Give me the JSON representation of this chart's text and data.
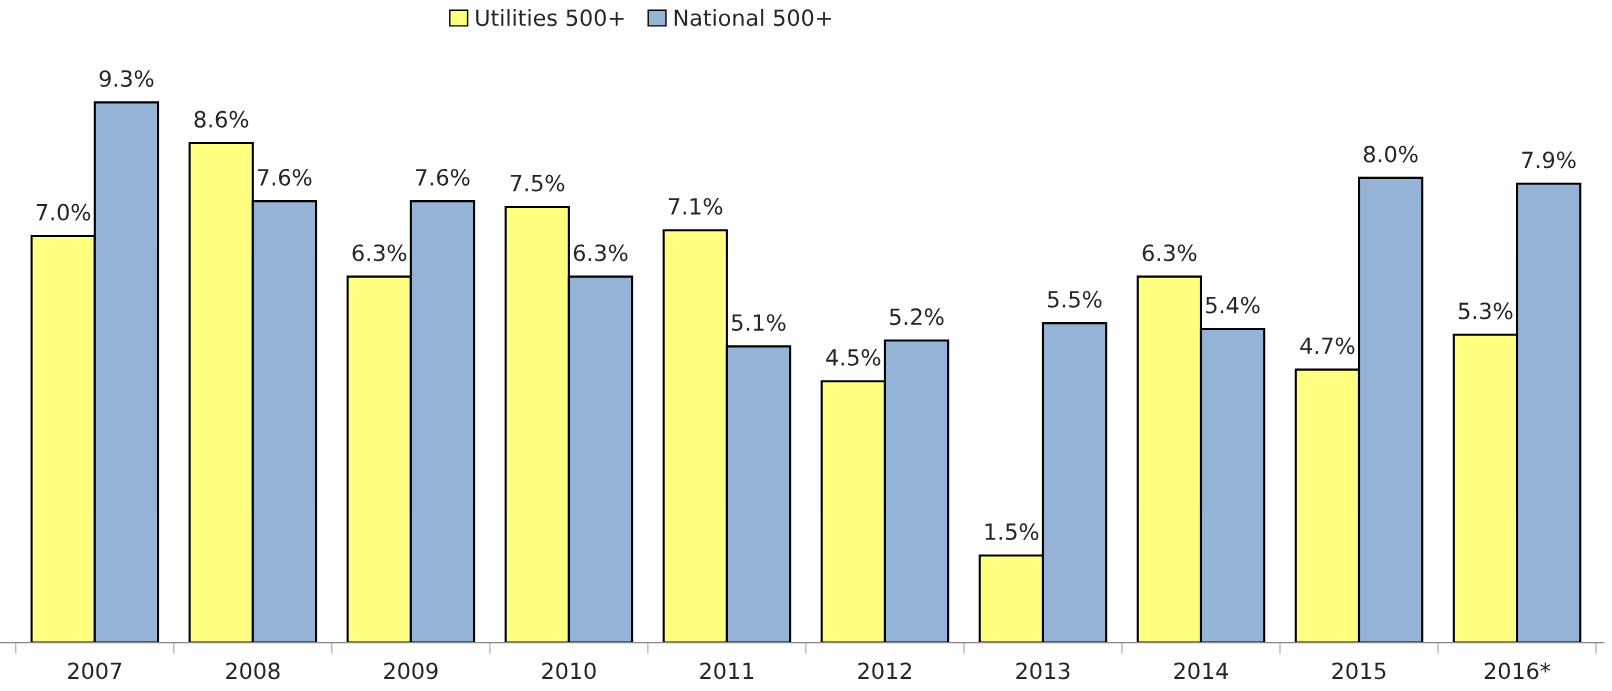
{
  "chart_data": {
    "type": "bar",
    "categories": [
      "2007",
      "2008",
      "2009",
      "2010",
      "2011",
      "2012",
      "2013",
      "2014",
      "2015",
      "2016*"
    ],
    "series": [
      {
        "name": "Utilities 500+",
        "color": "#ffff80",
        "values": [
          7.0,
          8.6,
          6.3,
          7.5,
          7.1,
          4.5,
          1.5,
          6.3,
          4.7,
          5.3
        ],
        "value_labels": [
          "7.0%",
          "8.6%",
          "6.3%",
          "7.5%",
          "7.1%",
          "4.5%",
          "1.5%",
          "6.3%",
          "4.7%",
          "5.3%"
        ]
      },
      {
        "name": "National 500+",
        "color": "#95b3d7",
        "values": [
          9.3,
          7.6,
          7.6,
          6.3,
          5.1,
          5.2,
          5.5,
          5.4,
          8.0,
          7.9
        ],
        "value_labels": [
          "9.3%",
          "7.6%",
          "7.6%",
          "6.3%",
          "5.1%",
          "5.2%",
          "5.5%",
          "5.4%",
          "8.0%",
          "7.9%"
        ]
      }
    ],
    "legend": "top",
    "grid": false
  }
}
